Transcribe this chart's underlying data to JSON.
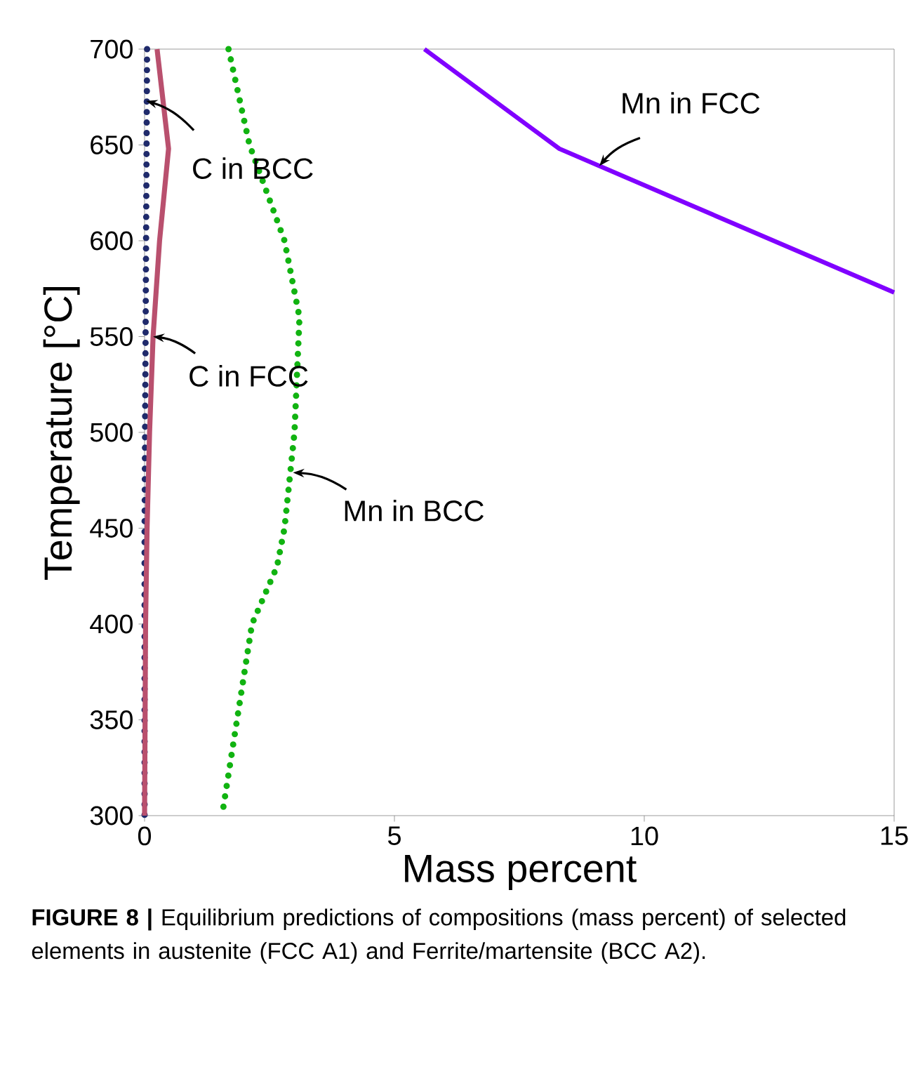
{
  "chart_data": {
    "type": "line",
    "xlabel": "Mass percent",
    "ylabel": "Temperature [°C]",
    "xlim": [
      0,
      15
    ],
    "ylim": [
      300,
      700
    ],
    "xticks": [
      0,
      5,
      10,
      15
    ],
    "yticks": [
      300,
      350,
      400,
      450,
      500,
      550,
      600,
      650,
      700
    ],
    "grid": false,
    "series": [
      {
        "color": "#1f2a6b",
        "line_style": "dotted",
        "x": [
          0.05,
          0.04,
          0.03,
          0.02,
          0.01,
          0,
          0
        ],
        "values": [
          700,
          650,
          600,
          550,
          500,
          450,
          300
        ]
      },
      {
        "color": "#b9506e",
        "line_style": "solid",
        "x": [
          0.25,
          0.48,
          0.3,
          0.17,
          0.1,
          0.05,
          0.02,
          0
        ],
        "values": [
          700,
          648,
          600,
          550,
          500,
          450,
          400,
          300
        ]
      },
      {
        "color": "#11b311",
        "line_style": "dotted",
        "x": [
          1.68,
          2.1,
          2.8,
          3.1,
          3.0,
          2.8,
          2.65,
          2.15,
          1.85,
          1.55
        ],
        "values": [
          700,
          650,
          600,
          560,
          500,
          450,
          430,
          400,
          350,
          300
        ]
      },
      {
        "color": "#8000ff",
        "line_style": "solid",
        "x": [
          5.6,
          8.3,
          15
        ],
        "values": [
          700,
          648,
          573
        ]
      }
    ],
    "annotations": [
      {
        "text": "C in BCC",
        "x": 0.03,
        "y": 673
      },
      {
        "text": "C in FCC",
        "x": 0.17,
        "y": 550
      },
      {
        "text": "Mn in BCC",
        "x": 2.97,
        "y": 479
      },
      {
        "text": "Mn in FCC",
        "x": 9.1,
        "y": 639
      },
      "**FIGURE 8 |** Equilibrium predictions of compositions (mass percent) of selected elements in austenite (FCC A1) and Ferrite/martensite (BCC A2)."
    ]
  }
}
